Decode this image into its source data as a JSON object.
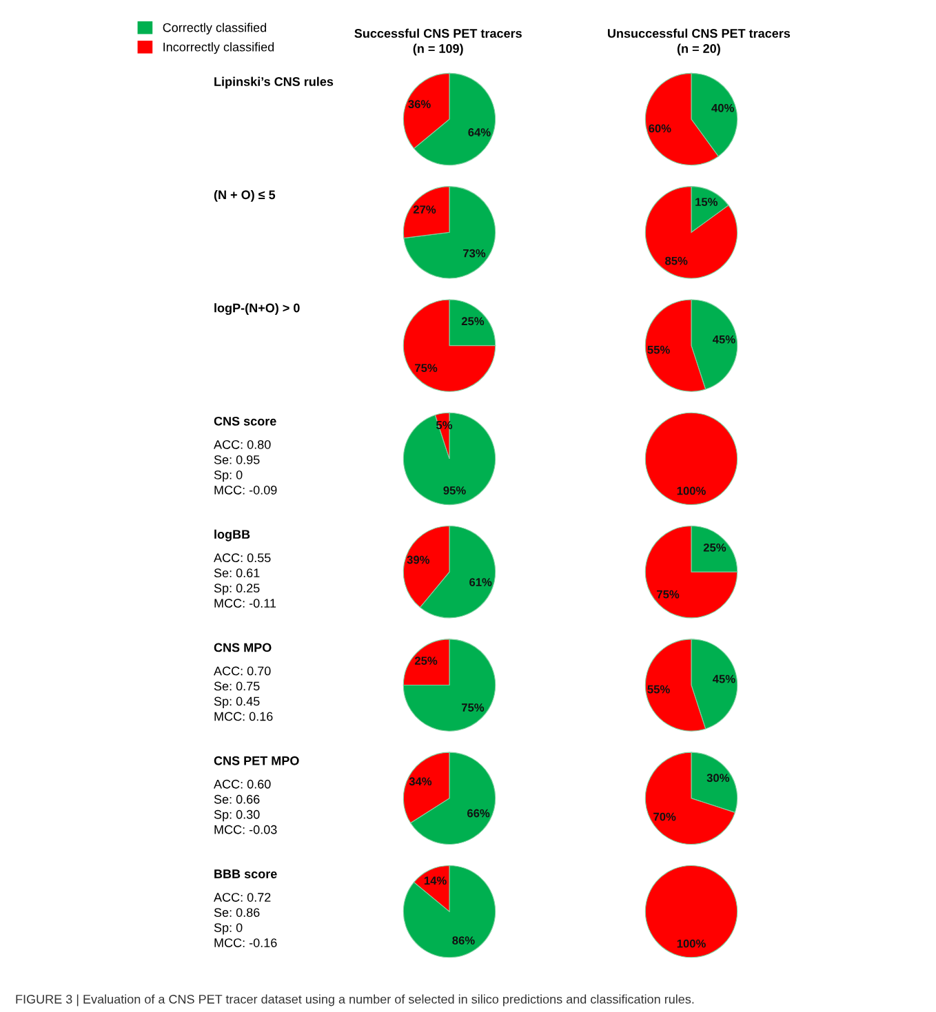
{
  "chart_data": [
    {
      "type": "pie",
      "title": "Successful CNS PET tracers",
      "subtitle": "(n = 109)",
      "legend": "top left",
      "categories": [
        "Correctly classified",
        "Incorrectly classified"
      ],
      "colors": [
        "#00b050",
        "#ff0000"
      ],
      "values": [
        64,
        36
      ],
      "value_labels": [
        "64%",
        "36%"
      ],
      "annotations": [
        "Lipinski’s CNS rules"
      ]
    },
    {
      "type": "pie",
      "title": "Unsuccessful CNS PET tracers",
      "subtitle": "(n = 20)",
      "categories": [
        null,
        null
      ],
      "colors": [
        "#00b050",
        "#ff0000"
      ],
      "values": [
        40,
        60
      ],
      "value_labels": [
        "40%",
        "60%"
      ]
    },
    {
      "type": "pie",
      "categories": [
        null,
        null
      ],
      "colors": [
        "#00b050",
        "#ff0000"
      ],
      "values": [
        73,
        27
      ],
      "value_labels": [
        "73%",
        "27%"
      ],
      "annotations": [
        "(N + O) ≤ 5"
      ]
    },
    {
      "type": "pie",
      "categories": [
        null,
        null
      ],
      "colors": [
        "#00b050",
        "#ff0000"
      ],
      "values": [
        15,
        85
      ],
      "value_labels": [
        "15%",
        "85%"
      ]
    },
    {
      "type": "pie",
      "categories": [
        null,
        null
      ],
      "colors": [
        "#00b050",
        "#ff0000"
      ],
      "values": [
        25,
        75
      ],
      "value_labels": [
        "25%",
        "75%"
      ],
      "annotations": [
        "logP-(N+O) > 0"
      ]
    },
    {
      "type": "pie",
      "categories": [
        null,
        null
      ],
      "colors": [
        "#00b050",
        "#ff0000"
      ],
      "values": [
        45,
        55
      ],
      "value_labels": [
        "45%",
        "55%"
      ]
    },
    {
      "type": "pie",
      "categories": [
        null,
        null
      ],
      "colors": [
        "#00b050",
        "#ff0000"
      ],
      "values": [
        95,
        5
      ],
      "value_labels": [
        "95%",
        "5%"
      ],
      "annotations": [
        "CNS score",
        "ACC: 0.80",
        "Se: 0.95",
        "Sp: 0",
        "MCC: -0.09"
      ]
    },
    {
      "type": "pie",
      "categories": [
        null,
        null
      ],
      "colors": [
        "#00b050",
        "#ff0000"
      ],
      "values": [
        0,
        100
      ],
      "value_labels": [
        null,
        "100%"
      ]
    },
    {
      "type": "pie",
      "categories": [
        null,
        null
      ],
      "colors": [
        "#00b050",
        "#ff0000"
      ],
      "values": [
        61,
        39
      ],
      "value_labels": [
        "61%",
        "39%"
      ],
      "annotations": [
        "logBB",
        "ACC: 0.55",
        "Se: 0.61",
        "Sp: 0.25",
        "MCC: -0.11"
      ]
    },
    {
      "type": "pie",
      "categories": [
        null,
        null
      ],
      "colors": [
        "#00b050",
        "#ff0000"
      ],
      "values": [
        25,
        75
      ],
      "value_labels": [
        "25%",
        "75%"
      ]
    },
    {
      "type": "pie",
      "categories": [
        null,
        null
      ],
      "colors": [
        "#00b050",
        "#ff0000"
      ],
      "values": [
        75,
        25
      ],
      "value_labels": [
        "75%",
        "25%"
      ],
      "annotations": [
        "CNS MPO",
        "ACC: 0.70",
        "Se: 0.75",
        "Sp: 0.45",
        "MCC: 0.16"
      ]
    },
    {
      "type": "pie",
      "categories": [
        null,
        null
      ],
      "colors": [
        "#00b050",
        "#ff0000"
      ],
      "values": [
        45,
        55
      ],
      "value_labels": [
        "45%",
        "55%"
      ]
    },
    {
      "type": "pie",
      "categories": [
        null,
        null
      ],
      "colors": [
        "#00b050",
        "#ff0000"
      ],
      "values": [
        66,
        34
      ],
      "value_labels": [
        "66%",
        "34%"
      ],
      "annotations": [
        "CNS PET MPO",
        "ACC: 0.60",
        "Se: 0.66",
        "Sp: 0.30",
        "MCC: -0.03"
      ]
    },
    {
      "type": "pie",
      "categories": [
        null,
        null
      ],
      "colors": [
        "#00b050",
        "#ff0000"
      ],
      "values": [
        30,
        70
      ],
      "value_labels": [
        "30%",
        "70%"
      ]
    },
    {
      "type": "pie",
      "categories": [
        null,
        null
      ],
      "colors": [
        "#00b050",
        "#ff0000"
      ],
      "values": [
        86,
        14
      ],
      "value_labels": [
        "86%",
        "14%"
      ],
      "annotations": [
        "BBB score",
        "ACC: 0.72",
        "Se: 0.86",
        "Sp: 0",
        "MCC: -0.16"
      ]
    },
    {
      "type": "pie",
      "categories": [
        null,
        null
      ],
      "colors": [
        "#00b050",
        "#ff0000"
      ],
      "values": [
        0,
        100
      ],
      "value_labels": [
        null,
        "100%"
      ],
      "annotations": [
        "FIGURE 3 | Evaluation of a CNS PET tracer dataset using a number of selected in silico predictions and classification rules."
      ]
    }
  ]
}
